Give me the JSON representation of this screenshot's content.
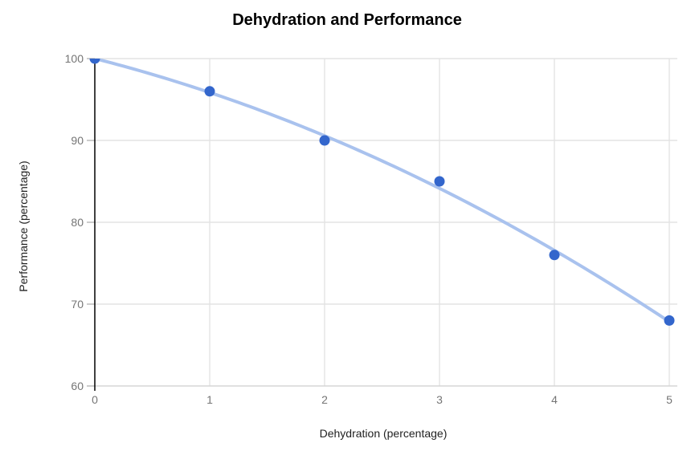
{
  "title": "Dehydration and Performance",
  "colors": {
    "background": "#ffffff",
    "point": "#3366cc",
    "trendline": "#a9c2ee",
    "gridline": "#e3e3e3",
    "baseline": "#d6d6d6",
    "tick_dash": "#b7b7b7",
    "y_axis_line": "#000000",
    "tick_label": "#757575",
    "axis_title": "#1f1f1f",
    "chart_title": "#000000"
  },
  "chart_data": {
    "type": "scatter",
    "title": "Dehydration and Performance",
    "xlabel": "Dehydration (percentage)",
    "ylabel": "Performance (percentage)",
    "x": [
      0,
      1,
      2,
      3,
      4,
      5
    ],
    "y": [
      100,
      96,
      90,
      85,
      76,
      68
    ],
    "x_ticks": [
      0,
      1,
      2,
      3,
      4,
      5
    ],
    "y_ticks": [
      60,
      70,
      80,
      90,
      100
    ],
    "xlim": [
      0,
      5
    ],
    "ylim": [
      60,
      100
    ],
    "grid": true,
    "legend": "none",
    "point_radius": 6.5,
    "trendline": {
      "type": "polynomial",
      "degree": 2,
      "coefficients": [
        100,
        -3.5714,
        -0.5714
      ]
    }
  }
}
